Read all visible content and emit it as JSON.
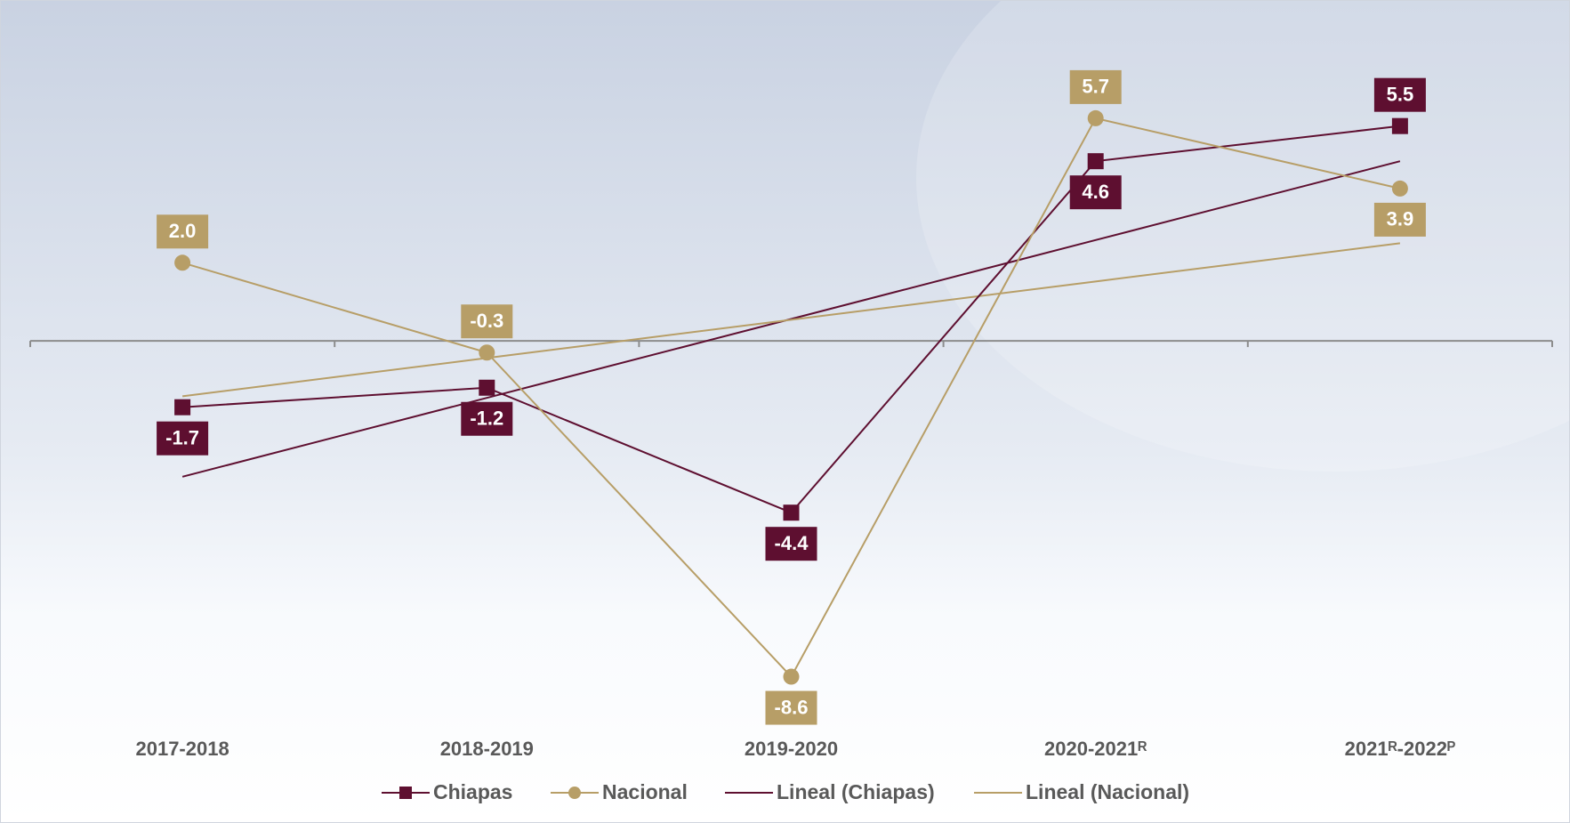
{
  "chart_data": {
    "type": "line",
    "categories": [
      "2017-2018",
      "2018-2019",
      "2019-2020",
      "2020-2021ᴿ",
      "2021ᴿ-2022ᴾ"
    ],
    "series": [
      {
        "name": "Chiapas",
        "color": "#5e0f30",
        "marker": "square",
        "values": [
          -1.7,
          -1.2,
          -4.4,
          4.6,
          5.5
        ],
        "value_labels": [
          "-1.7",
          "-1.2",
          "-4.4",
          "4.6",
          "5.5"
        ]
      },
      {
        "name": "Nacional",
        "color": "#b79e67",
        "marker": "circle",
        "values": [
          2.0,
          -0.3,
          -8.6,
          5.7,
          3.9
        ],
        "value_labels": [
          "2.0",
          "-0.3",
          "-8.6",
          "5.7",
          "3.9"
        ]
      },
      {
        "name": "Lineal (Chiapas)",
        "color": "#5e0f30",
        "trendline": true,
        "values": [
          -3.48,
          -1.46,
          0.56,
          2.58,
          4.6
        ]
      },
      {
        "name": "Lineal (Nacional)",
        "color": "#b79e67",
        "trendline": true,
        "values": [
          -1.42,
          -0.44,
          0.54,
          1.52,
          2.5
        ]
      }
    ],
    "ylim": [
      -10,
      8.5
    ],
    "legend": "bottom"
  }
}
